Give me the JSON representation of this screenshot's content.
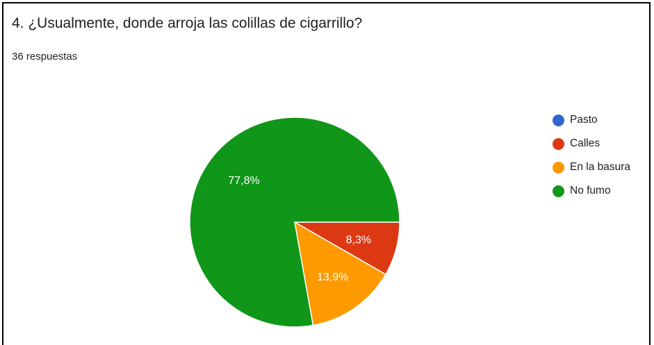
{
  "question": {
    "title": "4. ¿Usualmente, donde arroja las colillas de cigarrillo?",
    "response_count": "36 respuestas"
  },
  "chart_data": {
    "type": "pie",
    "categories": [
      "Pasto",
      "Calles",
      "En la basura",
      "No fumo"
    ],
    "values": [
      0,
      8.3,
      13.9,
      77.8
    ],
    "labels": [
      "",
      "8,3%",
      "13,9%",
      "77,8%"
    ],
    "colors": [
      "#3366cc",
      "#dc3912",
      "#ff9900",
      "#109618"
    ],
    "legend_position": "right"
  }
}
